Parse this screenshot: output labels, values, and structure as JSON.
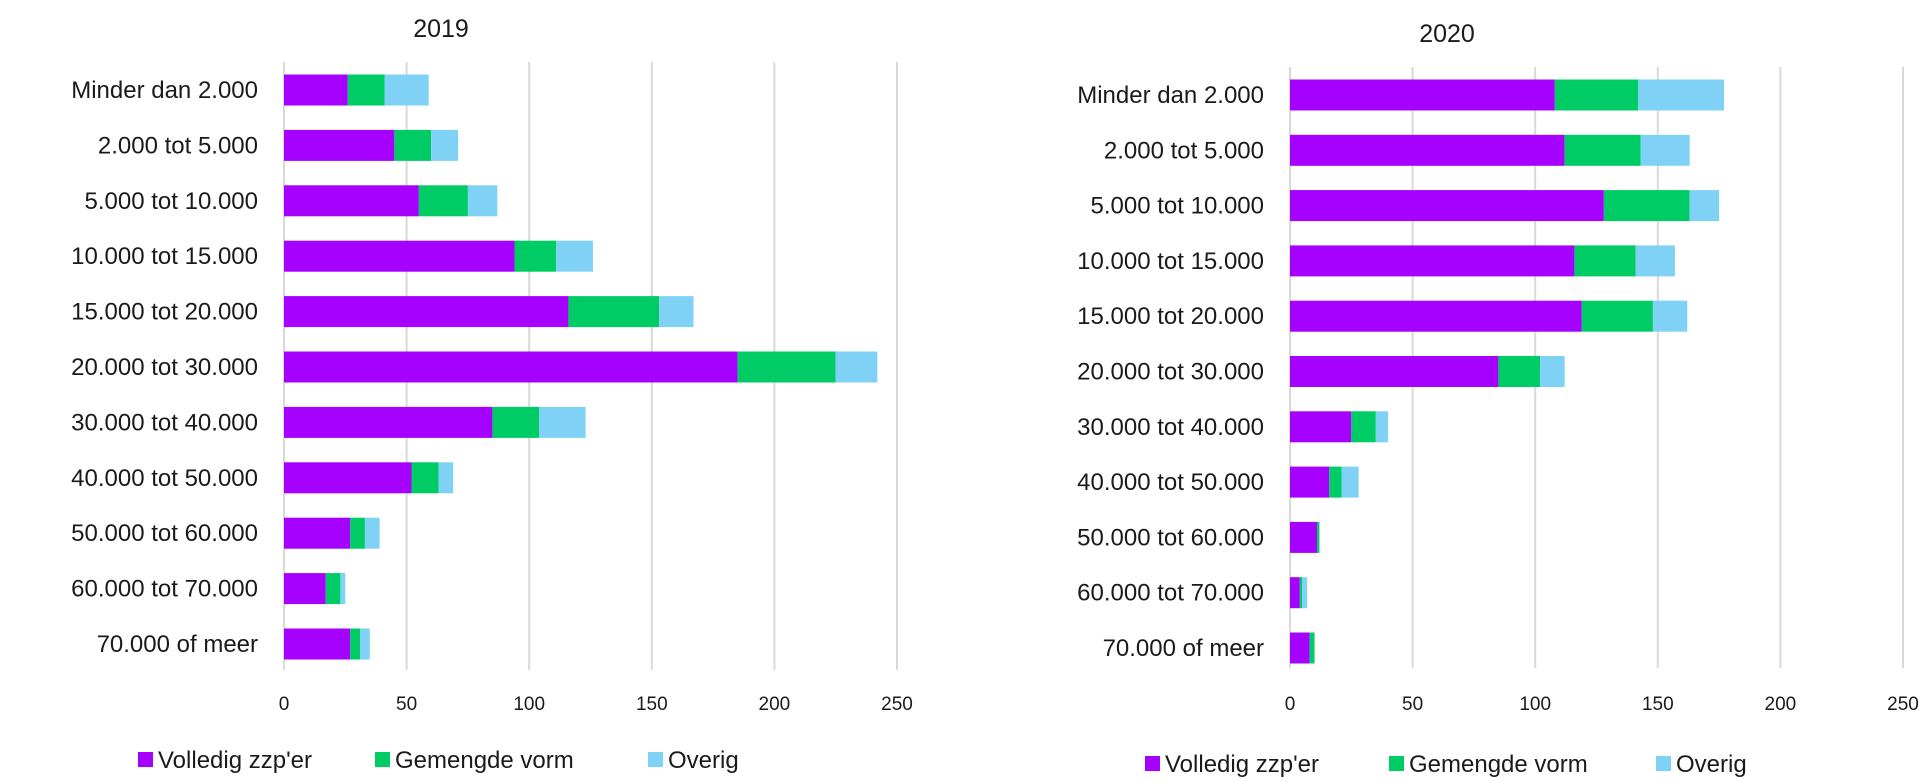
{
  "colors": {
    "Volledig zzp'er": "#A600FF",
    "Gemengde vorm": "#00CC66",
    "Overig": "#7FD2F5",
    "grid": "#D9D9D9"
  },
  "chart_data": [
    {
      "type": "bar",
      "orientation": "horizontal",
      "stacked": true,
      "title": "2019",
      "categories": [
        "Minder dan 2.000",
        "2.000 tot 5.000",
        "5.000 tot 10.000",
        "10.000 tot 15.000",
        "15.000 tot 20.000",
        "20.000 tot 30.000",
        "30.000 tot 40.000",
        "40.000 tot 50.000",
        "50.000 tot 60.000",
        "60.000 tot 70.000",
        "70.000 of meer"
      ],
      "series": [
        {
          "name": "Volledig zzp'er",
          "values": [
            26,
            45,
            55,
            94,
            116,
            185,
            85,
            52,
            27,
            17,
            27
          ]
        },
        {
          "name": "Gemengde vorm",
          "values": [
            15,
            15,
            20,
            17,
            37,
            40,
            19,
            11,
            6,
            6,
            4
          ]
        },
        {
          "name": "Overig",
          "values": [
            18,
            11,
            12,
            15,
            14,
            17,
            19,
            6,
            6,
            2,
            4
          ]
        }
      ],
      "xlim": [
        0,
        250
      ],
      "xticks": [
        "0",
        "50",
        "100",
        "150",
        "200",
        "250"
      ],
      "grid": true,
      "legend": "bottom"
    },
    {
      "type": "bar",
      "orientation": "horizontal",
      "stacked": true,
      "title": "2020",
      "categories": [
        "Minder dan 2.000",
        "2.000 tot 5.000",
        "5.000 tot 10.000",
        "10.000 tot 15.000",
        "15.000 tot 20.000",
        "20.000 tot 30.000",
        "30.000 tot 40.000",
        "40.000 tot 50.000",
        "50.000 tot 60.000",
        "60.000 tot 70.000",
        "70.000 of meer"
      ],
      "series": [
        {
          "name": "Volledig zzp'er",
          "values": [
            108,
            112,
            128,
            116,
            119,
            85,
            25,
            16,
            11,
            4,
            8
          ]
        },
        {
          "name": "Gemengde vorm",
          "values": [
            34,
            31,
            35,
            25,
            29,
            17,
            10,
            5,
            1,
            1,
            2
          ]
        },
        {
          "name": "Overig",
          "values": [
            35,
            20,
            12,
            16,
            14,
            10,
            5,
            7,
            0,
            2,
            0
          ]
        }
      ],
      "xlim": [
        0,
        250
      ],
      "xticks": [
        "0",
        "50",
        "100",
        "150",
        "200",
        "250"
      ],
      "grid": true,
      "legend": "bottom"
    }
  ]
}
